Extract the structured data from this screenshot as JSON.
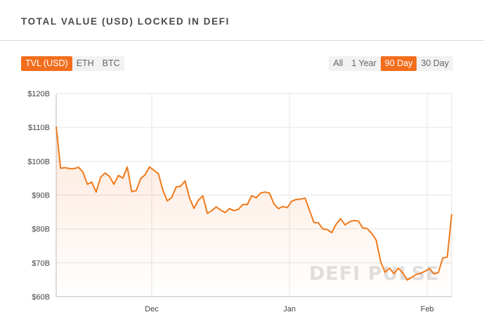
{
  "header": {
    "title": "TOTAL VALUE (USD) LOCKED IN DEFI"
  },
  "metric_tabs": [
    {
      "label": "TVL (USD)",
      "active": true
    },
    {
      "label": "ETH",
      "active": false
    },
    {
      "label": "BTC",
      "active": false
    }
  ],
  "range_tabs": [
    {
      "label": "All",
      "active": false
    },
    {
      "label": "1 Year",
      "active": false
    },
    {
      "label": "90 Day",
      "active": true
    },
    {
      "label": "30 Day",
      "active": false
    }
  ],
  "watermark": "DEFI PULSE",
  "colors": {
    "accent": "#f26e1d",
    "grid": "#e6e6e6",
    "line": "#f07a1c"
  },
  "chart_data": {
    "type": "area",
    "title": "",
    "xlabel": "",
    "ylabel": "",
    "ylim": [
      60,
      120
    ],
    "unit": "B USD",
    "y_ticks": [
      {
        "value": 120,
        "label": "$120B"
      },
      {
        "value": 110,
        "label": "$110B"
      },
      {
        "value": 100,
        "label": "$100B"
      },
      {
        "value": 90,
        "label": "$90B"
      },
      {
        "value": 80,
        "label": "$80B"
      },
      {
        "value": 70,
        "label": "$70B"
      },
      {
        "value": 60,
        "label": "$60B"
      }
    ],
    "x_ticks": [
      {
        "value": 1,
        "label": "Dec"
      },
      {
        "value": 32,
        "label": "Jan"
      },
      {
        "value": 63,
        "label": "Feb"
      }
    ],
    "xlim": [
      -20.5,
      68.5
    ],
    "grid": true,
    "legend": "none",
    "series": [
      {
        "x": [
          -20.5,
          -19.5,
          -18.5,
          -17.5,
          -16.5,
          -15.5,
          -14.5,
          -13.5,
          -12.5,
          -11.5,
          -10.5,
          -9.5,
          -8.5,
          -7.5,
          -6.5,
          -5.5,
          -4.5,
          -3.5,
          -2.5,
          -1.5,
          -0.5,
          0.5,
          1.5,
          2.5,
          3.5,
          4.5,
          5.5,
          6.5,
          7.5,
          8.5,
          9.5,
          10.5,
          11.5,
          12.5,
          13.5,
          14.5,
          15.5,
          16.5,
          17.5,
          18.5,
          19.5,
          20.5,
          21.5,
          22.5,
          23.5,
          24.5,
          25.5,
          26.5,
          27.5,
          28.5,
          29.5,
          30.5,
          31.5,
          32.5,
          33.5,
          34.5,
          35.5,
          36.5,
          37.5,
          38.5,
          39.5,
          40.5,
          41.5,
          42.5,
          43.5,
          44.5,
          45.5,
          46.5,
          47.5,
          48.5,
          49.5,
          50.5,
          51.5,
          52.5,
          53.5,
          54.5,
          55.5,
          56.5,
          57.5,
          58.5,
          59.5,
          60.5,
          61.5,
          62.5,
          63.5,
          64.5,
          65.5,
          66.5,
          67.5,
          68.5
        ],
        "values": [
          110.2,
          97.9,
          98.1,
          97.8,
          97.8,
          98.2,
          96.8,
          93.2,
          93.8,
          90.9,
          95.3,
          96.5,
          95.5,
          93.2,
          95.8,
          95.0,
          98.3,
          91.0,
          91.3,
          94.8,
          96.0,
          98.3,
          97.3,
          96.3,
          91.5,
          88.3,
          89.3,
          92.4,
          92.6,
          94.2,
          89.1,
          86.1,
          88.5,
          89.8,
          84.6,
          85.4,
          86.5,
          85.6,
          84.8,
          86.0,
          85.4,
          85.8,
          87.2,
          87.2,
          89.8,
          89.2,
          90.6,
          90.9,
          90.6,
          87.4,
          86.0,
          86.6,
          86.3,
          88.2,
          88.7,
          88.8,
          89.1,
          85.5,
          81.9,
          81.8,
          80.0,
          79.8,
          78.9,
          81.4,
          83.0,
          81.2,
          82.1,
          82.5,
          82.3,
          80.3,
          80.1,
          78.7,
          76.7,
          70.4,
          67.2,
          68.4,
          66.8,
          68.4,
          67.0,
          64.9,
          65.7,
          66.5,
          66.9,
          67.5,
          68.3,
          66.7,
          67.1,
          71.4,
          71.7,
          84.4
        ]
      }
    ]
  }
}
